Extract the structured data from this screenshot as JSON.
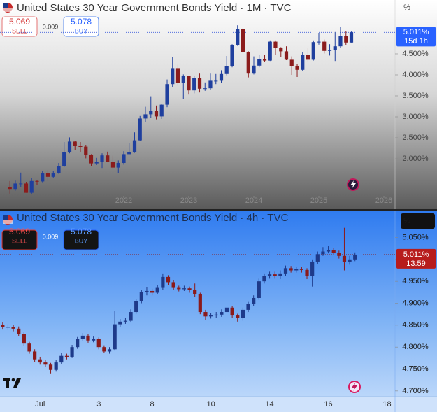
{
  "chart_data": [
    {
      "type": "candlestick",
      "title": "United States 30 Year Government Bonds Yield · 1M · TVC",
      "sell_price": 5.069,
      "sell_label": "SELL",
      "spread": 0.009,
      "buy_price": 5.078,
      "buy_label": "BUY",
      "unit_label": "%",
      "last_price": {
        "value": 5.011,
        "label": "5.011%"
      },
      "countdown": "15d 1h",
      "up_color": "#1f3f9e",
      "down_color": "#8b1c1c",
      "x": [
        2020.25,
        2020.333,
        2020.417,
        2020.5,
        2020.583,
        2020.667,
        2020.75,
        2020.833,
        2020.917,
        2021,
        2021.083,
        2021.167,
        2021.25,
        2021.333,
        2021.417,
        2021.5,
        2021.583,
        2021.667,
        2021.75,
        2021.833,
        2021.917,
        2022,
        2022.083,
        2022.167,
        2022.25,
        2022.333,
        2022.417,
        2022.5,
        2022.583,
        2022.667,
        2022.75,
        2022.833,
        2022.917,
        2023,
        2023.083,
        2023.167,
        2023.25,
        2023.333,
        2023.417,
        2023.5,
        2023.583,
        2023.667,
        2023.75,
        2023.833,
        2023.917,
        2024,
        2024.083,
        2024.167,
        2024.25,
        2024.333,
        2024.417,
        2024.5,
        2024.583,
        2024.667,
        2024.75,
        2024.833,
        2024.917,
        2025,
        2025.083,
        2025.167,
        2025.25,
        2025.333,
        2025.417,
        2025.5
      ],
      "open": [
        1.32,
        1.28,
        1.41,
        1.41,
        1.19,
        1.47,
        1.46,
        1.65,
        1.57,
        1.65,
        1.83,
        2.15,
        2.41,
        2.3,
        2.29,
        2.09,
        1.89,
        1.93,
        2.08,
        1.93,
        1.79,
        1.9,
        2.11,
        2.16,
        2.44,
        2.96,
        3.06,
        3.14,
        3.01,
        3.29,
        3.78,
        4.16,
        3.81,
        3.97,
        3.63,
        3.92,
        3.67,
        3.68,
        3.86,
        3.86,
        4.02,
        4.21,
        4.71,
        5.09,
        4.54,
        4.03,
        4.22,
        4.38,
        4.34,
        4.79,
        4.65,
        4.56,
        4.36,
        4.2,
        4.12,
        4.48,
        4.36,
        4.78,
        4.79,
        4.57,
        4.59,
        4.68,
        4.93,
        4.77
      ],
      "high": [
        1.47,
        1.48,
        1.67,
        1.45,
        1.55,
        1.5,
        1.7,
        1.73,
        1.71,
        1.9,
        2.4,
        2.51,
        2.42,
        2.4,
        2.32,
        2.11,
        2.02,
        2.13,
        2.17,
        2.07,
        1.96,
        2.18,
        2.38,
        2.63,
        3.02,
        3.24,
        3.49,
        3.27,
        3.31,
        3.89,
        4.43,
        4.24,
        4.01,
        3.98,
        3.98,
        4.03,
        3.82,
        4.03,
        4.02,
        4.11,
        4.45,
        4.73,
        5.18,
        5.11,
        4.56,
        4.44,
        4.48,
        4.47,
        4.82,
        4.82,
        4.66,
        4.68,
        4.44,
        4.25,
        4.55,
        4.65,
        4.82,
        5.0,
        4.84,
        4.73,
        5.02,
        5.15,
        5.05,
        5.03
      ],
      "low": [
        1.17,
        1.24,
        1.33,
        1.19,
        1.16,
        1.38,
        1.44,
        1.47,
        1.55,
        1.64,
        1.8,
        2.13,
        2.21,
        2.16,
        2.01,
        1.82,
        1.85,
        1.78,
        1.93,
        1.75,
        1.66,
        1.86,
        2.11,
        2.14,
        2.42,
        2.87,
        2.97,
        2.94,
        2.95,
        3.23,
        3.71,
        3.74,
        3.42,
        3.53,
        3.56,
        3.58,
        3.62,
        3.65,
        3.78,
        3.81,
        3.99,
        4.18,
        4.69,
        4.53,
        3.94,
        4.01,
        4.18,
        4.3,
        4.33,
        4.47,
        4.42,
        4.35,
        4.0,
        3.95,
        4.1,
        4.32,
        4.34,
        4.72,
        4.51,
        4.46,
        4.33,
        4.65,
        4.71,
        4.77
      ],
      "close": [
        1.28,
        1.41,
        1.41,
        1.19,
        1.47,
        1.46,
        1.65,
        1.57,
        1.65,
        1.83,
        2.15,
        2.41,
        2.3,
        2.29,
        2.09,
        1.89,
        1.93,
        2.08,
        1.93,
        1.79,
        1.9,
        2.11,
        2.16,
        2.44,
        2.96,
        3.06,
        3.14,
        3.01,
        3.29,
        3.78,
        4.16,
        3.81,
        3.97,
        3.63,
        3.92,
        3.67,
        3.68,
        3.86,
        3.86,
        4.02,
        4.21,
        4.71,
        5.09,
        4.54,
        4.03,
        4.22,
        4.38,
        4.34,
        4.79,
        4.65,
        4.56,
        4.36,
        4.2,
        4.12,
        4.48,
        4.36,
        4.78,
        4.79,
        4.57,
        4.59,
        4.68,
        4.93,
        4.77,
        5.01
      ],
      "xlim": [
        2020.097,
        2026.172
      ],
      "xticks": [
        2022,
        2023,
        2024,
        2025,
        2026
      ],
      "ylim": [
        1.117,
        5.783
      ],
      "yticks": [
        {
          "value": 2.0,
          "label": "2.000%"
        },
        {
          "value": 2.5,
          "label": "2.500%"
        },
        {
          "value": 3.0,
          "label": "3.000%"
        },
        {
          "value": 3.5,
          "label": "3.500%"
        },
        {
          "value": 4.0,
          "label": "4.000%"
        },
        {
          "value": 4.5,
          "label": "4.500%"
        }
      ]
    },
    {
      "type": "candlestick",
      "title": "United States 30 Year Government Bonds Yield · 4h · TVC",
      "sell_price": 5.069,
      "sell_label": "SELL",
      "spread": 0.009,
      "buy_price": 5.078,
      "buy_label": "BUY",
      "unit_label": "%",
      "last_price": {
        "value": 5.011,
        "label": "5.011%"
      },
      "countdown": "13:59",
      "up_color": "#1e3a8a",
      "down_color": "#8b1a1a",
      "categories": [
        null,
        null,
        null,
        null,
        null,
        null,
        null,
        "Jul",
        null,
        null,
        null,
        null,
        null,
        null,
        null,
        null,
        null,
        null,
        "3",
        null,
        null,
        null,
        null,
        null,
        null,
        null,
        null,
        null,
        "8",
        null,
        null,
        null,
        null,
        null,
        null,
        null,
        null,
        null,
        null,
        "10",
        null,
        null,
        null,
        null,
        null,
        null,
        null,
        null,
        null,
        null,
        "14",
        null,
        null,
        null,
        null,
        null,
        null,
        null,
        null,
        null,
        null,
        "16",
        null,
        null,
        null,
        null,
        null,
        null,
        null,
        null,
        null,
        null,
        "18",
        null
      ],
      "open": [
        4.85,
        4.845,
        4.846,
        4.842,
        4.83,
        4.808,
        4.79,
        4.772,
        4.765,
        4.76,
        4.748,
        4.765,
        4.78,
        4.778,
        4.8,
        4.818,
        4.826,
        4.815,
        4.818,
        4.8,
        4.79,
        4.795,
        4.852,
        4.858,
        4.86,
        4.88,
        4.905,
        4.925,
        4.928,
        4.924,
        4.935,
        4.96,
        4.948,
        4.935,
        4.932,
        4.934,
        4.93,
        4.92,
        4.88,
        4.87,
        4.872,
        4.874,
        4.88,
        4.89,
        4.872,
        4.866,
        4.885,
        4.898,
        4.912,
        4.95,
        4.962,
        4.966,
        4.962,
        4.968,
        4.98,
        4.975,
        4.978,
        4.976,
        4.962,
        4.995,
        5.012,
        5.018,
        5.022,
        5.015,
        5.008,
        4.995,
        5.0,
        null,
        null,
        null,
        null,
        null,
        null,
        null
      ],
      "high": [
        4.856,
        4.852,
        4.851,
        4.847,
        4.835,
        4.812,
        4.795,
        4.778,
        4.77,
        4.764,
        4.77,
        4.786,
        4.785,
        4.805,
        4.823,
        4.832,
        4.83,
        4.824,
        4.822,
        4.804,
        4.8,
        4.882,
        4.864,
        4.866,
        4.886,
        4.91,
        4.93,
        4.936,
        4.933,
        4.941,
        4.968,
        4.964,
        4.952,
        4.94,
        4.94,
        4.938,
        4.945,
        4.924,
        4.885,
        4.878,
        4.88,
        4.886,
        4.896,
        4.894,
        4.876,
        4.89,
        4.903,
        4.918,
        4.956,
        4.968,
        4.972,
        4.972,
        4.975,
        4.986,
        4.985,
        4.983,
        4.983,
        4.98,
        5.0,
        5.018,
        5.028,
        5.03,
        5.026,
        5.02,
        5.072,
        5.008,
        5.016,
        null,
        null,
        null,
        null,
        null,
        null,
        null
      ],
      "low": [
        4.84,
        4.839,
        4.836,
        4.825,
        4.802,
        4.785,
        4.766,
        4.76,
        4.754,
        4.74,
        4.744,
        4.762,
        4.772,
        4.775,
        4.796,
        4.813,
        4.81,
        4.811,
        4.795,
        4.786,
        4.785,
        4.792,
        4.846,
        4.853,
        4.856,
        4.876,
        4.9,
        4.918,
        4.918,
        4.92,
        4.93,
        4.942,
        4.93,
        4.927,
        4.928,
        4.924,
        4.915,
        4.875,
        4.862,
        4.865,
        4.866,
        4.869,
        4.876,
        4.866,
        4.858,
        4.86,
        4.88,
        4.893,
        4.908,
        4.945,
        4.956,
        4.956,
        4.955,
        4.962,
        4.97,
        4.97,
        4.97,
        4.955,
        4.938,
        4.99,
        5.008,
        5.014,
        5.01,
        5.002,
        4.975,
        4.988,
        4.996,
        null,
        null,
        null,
        null,
        null,
        null,
        null
      ],
      "close": [
        4.845,
        4.846,
        4.842,
        4.83,
        4.808,
        4.79,
        4.772,
        4.765,
        4.76,
        4.748,
        4.765,
        4.78,
        4.778,
        4.8,
        4.818,
        4.826,
        4.815,
        4.818,
        4.8,
        4.79,
        4.795,
        4.852,
        4.858,
        4.86,
        4.88,
        4.905,
        4.925,
        4.928,
        4.924,
        4.935,
        4.96,
        4.948,
        4.935,
        4.932,
        4.934,
        4.93,
        4.92,
        4.88,
        4.87,
        4.872,
        4.874,
        4.88,
        4.89,
        4.872,
        4.866,
        4.885,
        4.898,
        4.912,
        4.95,
        4.962,
        4.966,
        4.962,
        4.968,
        4.98,
        4.975,
        4.978,
        4.976,
        4.962,
        4.995,
        5.012,
        5.018,
        5.022,
        5.015,
        5.008,
        4.995,
        5.0,
        5.011,
        null,
        null,
        null,
        null,
        null,
        null,
        null
      ],
      "ylim": [
        4.687,
        5.113
      ],
      "yticks": [
        {
          "value": 4.7,
          "label": "4.700%"
        },
        {
          "value": 4.75,
          "label": "4.750%"
        },
        {
          "value": 4.8,
          "label": "4.800%"
        },
        {
          "value": 4.85,
          "label": "4.850%"
        },
        {
          "value": 4.9,
          "label": "4.900%"
        },
        {
          "value": 4.95,
          "label": "4.950%"
        },
        {
          "value": 5.0,
          "label": "5.000%"
        },
        {
          "value": 5.05,
          "label": "5.050%"
        }
      ]
    }
  ]
}
